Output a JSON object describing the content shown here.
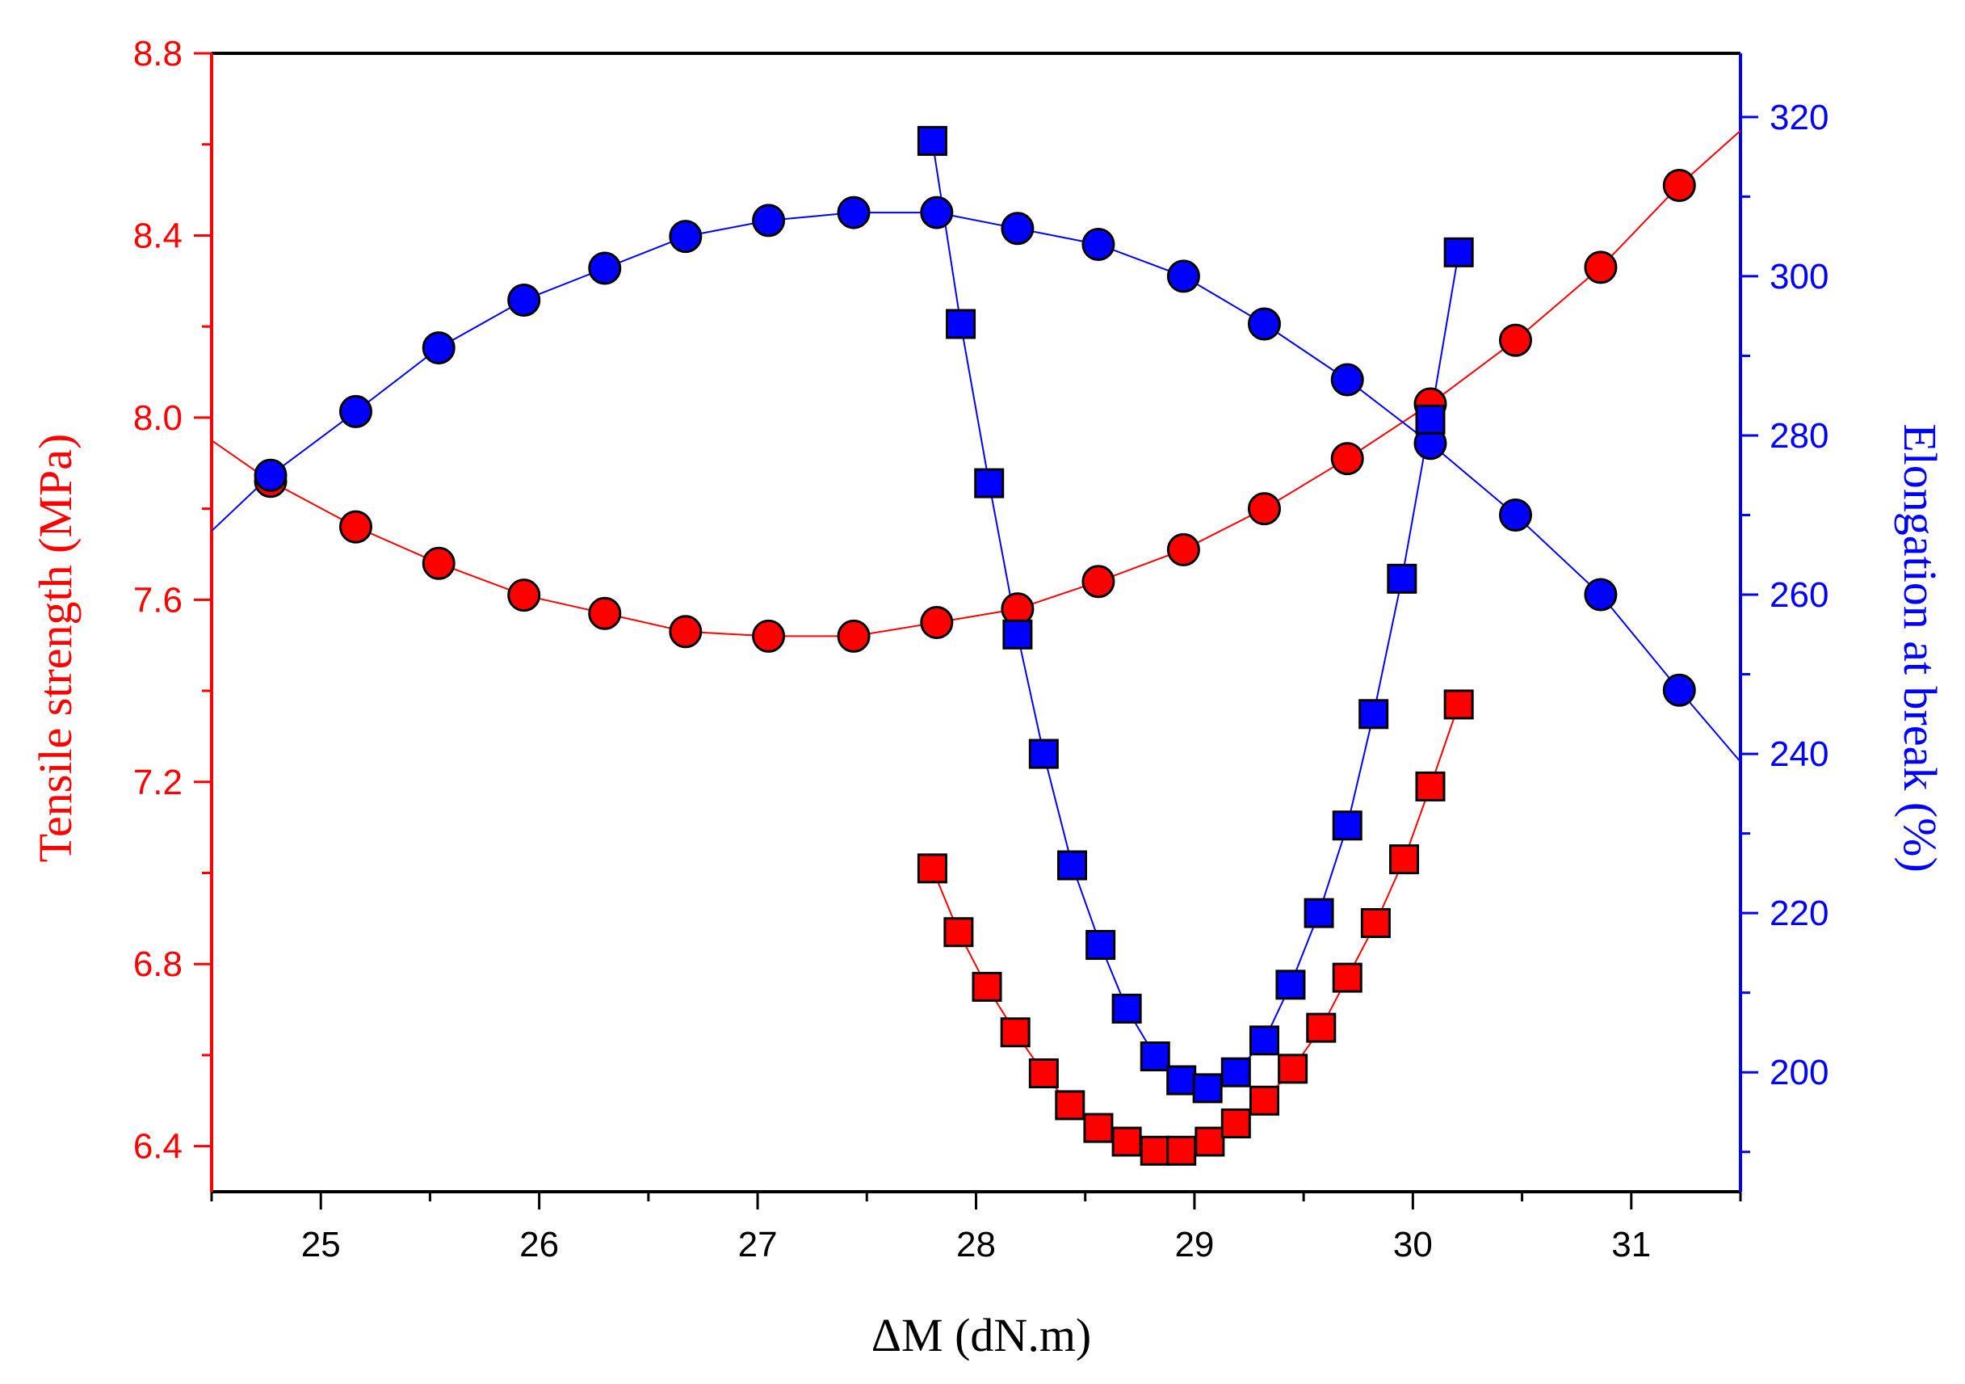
{
  "chart_data": {
    "type": "scatter",
    "title": "",
    "xlabel": "ΔM (dN.m)",
    "ylabel_left": "Tensile strength (MPa)",
    "ylabel_right": "Elongation at break (%)",
    "xlim": [
      24.5,
      31.5
    ],
    "ylim_left": [
      6.3,
      8.8
    ],
    "ylim_right": [
      185,
      328
    ],
    "x_ticks": [
      25,
      26,
      27,
      28,
      29,
      30,
      31
    ],
    "y_left_ticks": [
      6.4,
      6.8,
      7.2,
      7.6,
      8.0,
      8.4,
      8.8
    ],
    "y_right_ticks": [
      200,
      220,
      240,
      260,
      280,
      300,
      320
    ],
    "colors": {
      "left_axis": "#ff0000",
      "right_axis": "#0000ff",
      "red_marker": "#ff0000",
      "blue_marker": "#0000ff",
      "frame": "#000000"
    },
    "series": [
      {
        "marker": "circle",
        "color": "#ff0000",
        "axis": "left",
        "x": [
          24.77,
          25.16,
          25.54,
          25.93,
          26.3,
          26.67,
          27.05,
          27.44,
          27.82,
          28.19,
          28.56,
          28.95,
          29.32,
          29.7,
          30.08,
          30.47,
          30.86,
          31.22
        ],
        "y": [
          7.86,
          7.76,
          7.68,
          7.61,
          7.57,
          7.53,
          7.52,
          7.52,
          7.55,
          7.58,
          7.64,
          7.71,
          7.8,
          7.91,
          8.03,
          8.17,
          8.33,
          8.51
        ]
      },
      {
        "marker": "circle",
        "color": "#0000ff",
        "axis": "right",
        "x": [
          24.77,
          25.16,
          25.54,
          25.93,
          26.3,
          26.67,
          27.05,
          27.44,
          27.82,
          28.19,
          28.56,
          28.95,
          29.32,
          29.7,
          30.08,
          30.47,
          30.86,
          31.22
        ],
        "y": [
          275,
          283,
          291,
          297,
          301,
          305,
          307,
          308,
          308,
          306,
          304,
          300,
          294,
          287,
          279,
          270,
          260,
          248
        ]
      },
      {
        "marker": "square",
        "color": "#ff0000",
        "axis": "left",
        "x": [
          27.8,
          27.92,
          28.05,
          28.18,
          28.31,
          28.43,
          28.56,
          28.69,
          28.82,
          28.94,
          29.07,
          29.19,
          29.32,
          29.45,
          29.58,
          29.7,
          29.83,
          29.96,
          30.08,
          30.21
        ],
        "y": [
          7.01,
          6.87,
          6.75,
          6.65,
          6.56,
          6.49,
          6.44,
          6.41,
          6.39,
          6.39,
          6.41,
          6.45,
          6.5,
          6.57,
          6.66,
          6.77,
          6.89,
          7.03,
          7.19,
          7.37
        ]
      },
      {
        "marker": "square",
        "color": "#0000ff",
        "axis": "right",
        "x": [
          27.8,
          27.93,
          28.06,
          28.19,
          28.31,
          28.44,
          28.57,
          28.69,
          28.82,
          28.94,
          29.06,
          29.19,
          29.32,
          29.44,
          29.57,
          29.7,
          29.82,
          29.95,
          30.08,
          30.21
        ],
        "y": [
          317,
          294,
          274,
          255,
          240,
          226,
          216,
          208,
          202,
          199,
          198,
          200,
          204,
          211,
          220,
          231,
          245,
          262,
          282,
          303
        ]
      }
    ],
    "fit_lines": [
      {
        "color": "#ff0000",
        "axis": "left",
        "x": [
          24.5,
          24.77,
          25.16,
          25.54,
          25.93,
          26.3,
          26.67,
          27.05,
          27.44,
          27.82,
          28.19,
          28.56,
          28.95,
          29.32,
          29.7,
          30.08,
          30.47,
          30.86,
          31.22,
          31.5
        ],
        "y": [
          7.95,
          7.86,
          7.76,
          7.68,
          7.61,
          7.57,
          7.53,
          7.52,
          7.52,
          7.55,
          7.58,
          7.64,
          7.71,
          7.8,
          7.91,
          8.03,
          8.17,
          8.33,
          8.51,
          8.63
        ]
      },
      {
        "color": "#0000ff",
        "axis": "right",
        "x": [
          24.5,
          24.77,
          25.16,
          25.54,
          25.93,
          26.3,
          26.67,
          27.05,
          27.44,
          27.82,
          28.19,
          28.56,
          28.95,
          29.32,
          29.7,
          30.08,
          30.47,
          30.86,
          31.22,
          31.5
        ],
        "y": [
          268,
          275,
          283,
          291,
          297,
          301,
          305,
          307,
          308,
          308,
          306,
          304,
          300,
          294,
          287,
          279,
          270,
          260,
          248,
          239
        ]
      },
      {
        "color": "#ff0000",
        "axis": "left",
        "x": [
          27.8,
          27.92,
          28.05,
          28.18,
          28.31,
          28.43,
          28.56,
          28.69,
          28.82,
          28.94,
          29.07,
          29.19,
          29.32,
          29.45,
          29.58,
          29.7,
          29.83,
          29.96,
          30.08,
          30.21
        ],
        "y": [
          7.01,
          6.87,
          6.75,
          6.65,
          6.56,
          6.49,
          6.44,
          6.41,
          6.39,
          6.39,
          6.41,
          6.45,
          6.5,
          6.57,
          6.66,
          6.77,
          6.89,
          7.03,
          7.19,
          7.37
        ]
      },
      {
        "color": "#0000ff",
        "axis": "right",
        "x": [
          27.8,
          27.93,
          28.06,
          28.19,
          28.31,
          28.44,
          28.57,
          28.69,
          28.82,
          28.94,
          29.06,
          29.19,
          29.32,
          29.44,
          29.57,
          29.7,
          29.82,
          29.95,
          30.08,
          30.21
        ],
        "y": [
          317,
          294,
          274,
          255,
          240,
          226,
          216,
          208,
          202,
          199,
          198,
          200,
          204,
          211,
          220,
          231,
          245,
          262,
          282,
          303
        ]
      }
    ],
    "grid": false,
    "legend": "none"
  }
}
